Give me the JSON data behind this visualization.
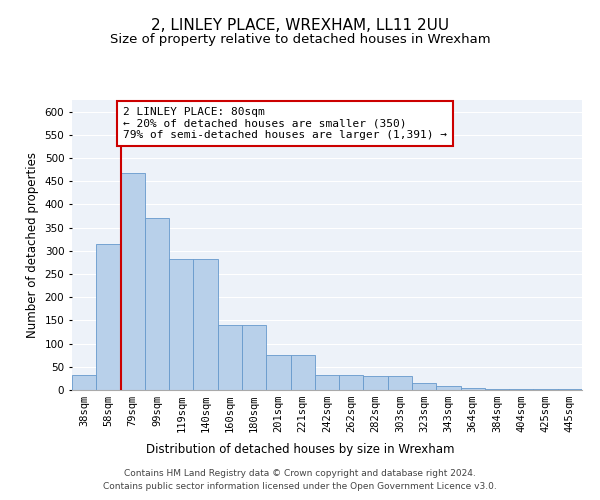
{
  "title": "2, LINLEY PLACE, WREXHAM, LL11 2UU",
  "subtitle": "Size of property relative to detached houses in Wrexham",
  "xlabel": "Distribution of detached houses by size in Wrexham",
  "ylabel": "Number of detached properties",
  "categories": [
    "38sqm",
    "58sqm",
    "79sqm",
    "99sqm",
    "119sqm",
    "140sqm",
    "160sqm",
    "180sqm",
    "201sqm",
    "221sqm",
    "242sqm",
    "262sqm",
    "282sqm",
    "303sqm",
    "323sqm",
    "343sqm",
    "364sqm",
    "384sqm",
    "404sqm",
    "425sqm",
    "445sqm"
  ],
  "values": [
    33,
    315,
    468,
    370,
    282,
    282,
    140,
    140,
    75,
    75,
    33,
    33,
    30,
    30,
    15,
    8,
    5,
    3,
    2,
    2,
    2
  ],
  "bar_color": "#b8d0ea",
  "bar_edge_color": "#6699cc",
  "vline_index": 2,
  "vline_color": "#cc0000",
  "annotation_text": "2 LINLEY PLACE: 80sqm\n← 20% of detached houses are smaller (350)\n79% of semi-detached houses are larger (1,391) →",
  "annotation_box_color": "#cc0000",
  "ylim": [
    0,
    625
  ],
  "yticks": [
    0,
    50,
    100,
    150,
    200,
    250,
    300,
    350,
    400,
    450,
    500,
    550,
    600
  ],
  "footer_line1": "Contains HM Land Registry data © Crown copyright and database right 2024.",
  "footer_line2": "Contains public sector information licensed under the Open Government Licence v3.0.",
  "bg_color": "#edf2f9",
  "plot_bg_color": "#edf2f9",
  "title_fontsize": 11,
  "subtitle_fontsize": 9.5,
  "axis_label_fontsize": 8.5,
  "tick_fontsize": 7.5,
  "annotation_fontsize": 8,
  "footer_fontsize": 6.5
}
